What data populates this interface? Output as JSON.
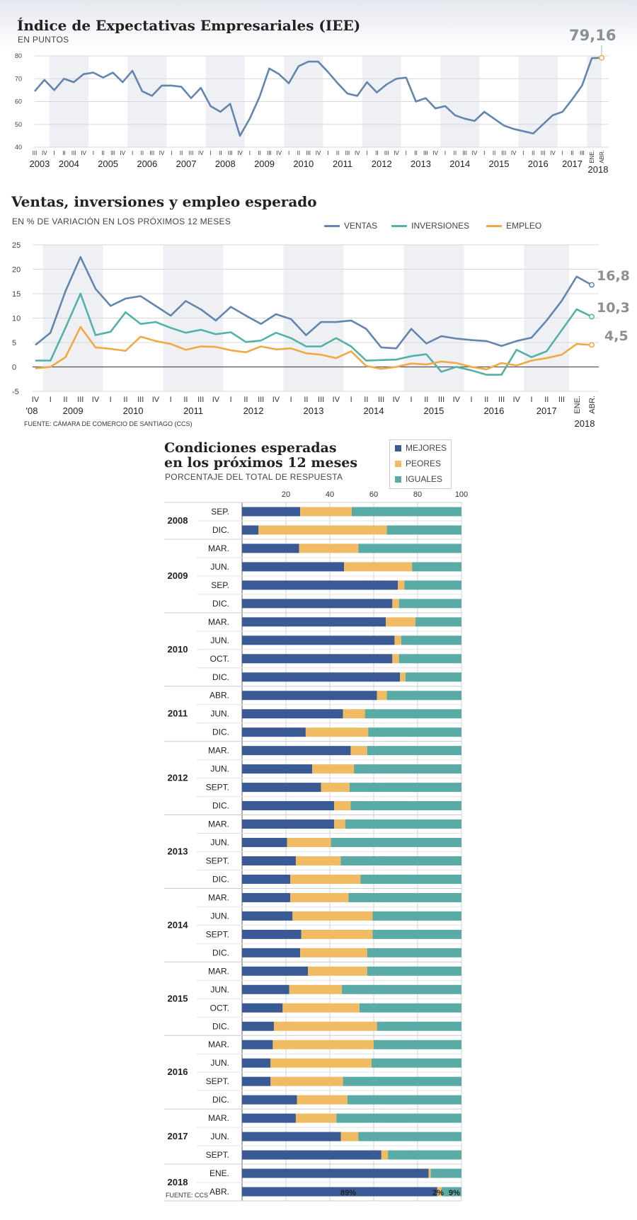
{
  "colors": {
    "mejores": "#3a5a96",
    "peores": "#f0bb63",
    "iguales": "#5aaaa5",
    "ventas": "#6485ad",
    "inversiones": "#53b2a8",
    "empleo": "#f1a945",
    "line1": "#6485ad",
    "band": "#eef0f3",
    "marker": "#f1a945"
  },
  "chart1": {
    "title": "Índice de Expectativas Empresariales (IEE)",
    "subtitle": "EN PUNTOS",
    "last_value_label": "79,16"
  },
  "chart2": {
    "title": "Ventas, inversiones y empleo esperado",
    "subtitle": "EN % DE VARIACIÓN EN LOS PRÓXIMOS 12 MESES",
    "source": "FUENTE: CÁMARA DE COMERCIO DE SANTIAGO (CCS)",
    "legend": [
      "VENTAS",
      "INVERSIONES",
      "EMPLEO"
    ],
    "end_labels": [
      "16,8",
      "10,3",
      "4,5"
    ]
  },
  "chart3": {
    "title_line1": "Condiciones esperadas",
    "title_line2": "en los próximos 12 meses",
    "subtitle": "PORCENTAJE DEL TOTAL DE RESPUESTA",
    "legend": [
      "MEJORES",
      "PEORES",
      "IGUALES"
    ],
    "source": "FUENTE: CCS",
    "final_labels": [
      "89%",
      "2%",
      "9%"
    ]
  },
  "chart_data": [
    {
      "type": "line",
      "title": "Índice de Expectativas Empresariales (IEE)",
      "subtitle": "EN PUNTOS",
      "ylim": [
        40,
        80
      ],
      "yticks": [
        40,
        50,
        60,
        70,
        80
      ],
      "grid": true,
      "x": [
        "2003 III",
        "2003 IV",
        "2004 I",
        "2004 II",
        "2004 III",
        "2004 IV",
        "2005 I",
        "2005 II",
        "2005 III",
        "2005 IV",
        "2006 I",
        "2006 II",
        "2006 III",
        "2006 IV",
        "2007 I",
        "2007 II",
        "2007 III",
        "2007 IV",
        "2008 I",
        "2008 II",
        "2008 III",
        "2008 IV",
        "2009 I",
        "2009 II",
        "2009 III",
        "2009 IV",
        "2010 I",
        "2010 II",
        "2010 III",
        "2010 IV",
        "2011 I",
        "2011 II",
        "2011 III",
        "2011 IV",
        "2012 I",
        "2012 II",
        "2012 III",
        "2012 IV",
        "2013 I",
        "2013 II",
        "2013 III",
        "2013 IV",
        "2014 I",
        "2014 II",
        "2014 III",
        "2014 IV",
        "2015 I",
        "2015 II",
        "2015 III",
        "2015 IV",
        "2016 I",
        "2016 II",
        "2016 III",
        "2016 IV",
        "2017 I",
        "2017 II",
        "2017 III",
        "2018 ENE.",
        "2018 ABR."
      ],
      "year_labels": [
        "2003",
        "2004",
        "2005",
        "2006",
        "2007",
        "2008",
        "2009",
        "2010",
        "2011",
        "2012",
        "2013",
        "2014",
        "2015",
        "2016",
        "2017",
        "2018"
      ],
      "quarter_labels": [
        "III",
        "IV",
        "I",
        "II",
        "III",
        "IV",
        "I",
        "II",
        "III",
        "IV",
        "I",
        "II",
        "III",
        "IV",
        "I",
        "II",
        "III",
        "IV",
        "I",
        "II",
        "III",
        "IV",
        "I",
        "II",
        "III",
        "IV",
        "I",
        "II",
        "III",
        "IV",
        "I",
        "II",
        "III",
        "IV",
        "I",
        "II",
        "III",
        "IV",
        "I",
        "II",
        "III",
        "IV",
        "I",
        "II",
        "III",
        "IV",
        "I",
        "II",
        "III",
        "IV",
        "I",
        "II",
        "III",
        "IV",
        "I",
        "II",
        "III",
        "ENE.",
        "ABR."
      ],
      "series": [
        {
          "values": [
            64.5,
            69.5,
            65,
            70,
            68.5,
            72,
            72.7,
            70.5,
            72.7,
            68.5,
            73.5,
            64.5,
            62.5,
            67,
            67,
            66.5,
            61.5,
            66,
            58,
            55.5,
            59,
            45,
            52.5,
            62,
            74.5,
            72,
            68,
            75.5,
            77.5,
            77.5,
            73,
            68,
            63.5,
            62.5,
            68.5,
            64,
            67.5,
            70,
            70.5,
            60,
            61.5,
            57,
            58,
            54,
            52.5,
            51.5,
            55.5,
            52.5,
            49.5,
            48,
            47,
            46,
            50,
            54,
            55.5,
            61,
            67,
            79,
            79.16
          ]
        }
      ],
      "last_label": "79,16"
    },
    {
      "type": "line",
      "title": "Ventas, inversiones y empleo esperado",
      "subtitle": "EN % DE VARIACIÓN EN LOS PRÓXIMOS 12 MESES",
      "ylim": [
        -5,
        25
      ],
      "yticks": [
        -5,
        0,
        5,
        10,
        15,
        20,
        25
      ],
      "grid": true,
      "legend_position": "top-right",
      "x": [
        "2008 IV",
        "2009 I",
        "2009 II",
        "2009 III",
        "2009 IV",
        "2010 I",
        "2010 II",
        "2010 III",
        "2010 IV",
        "2011 I",
        "2011 II",
        "2011 III",
        "2011 IV",
        "2012 I",
        "2012 II",
        "2012 III",
        "2012 IV",
        "2013 I",
        "2013 II",
        "2013 III",
        "2013 IV",
        "2014 I",
        "2014 II",
        "2014 III",
        "2014 IV",
        "2015 I",
        "2015 II",
        "2015 III",
        "2015 IV",
        "2016 I",
        "2016 II",
        "2016 III",
        "2016 IV",
        "2017 I",
        "2017 II",
        "2017 III",
        "2018 ENE.",
        "2018 ABR."
      ],
      "year_labels": [
        "'08",
        "2009",
        "2010",
        "2011",
        "2012",
        "2013",
        "2014",
        "2015",
        "2016",
        "2017",
        "2018"
      ],
      "quarter_labels": [
        "IV",
        "I",
        "II",
        "III",
        "IV",
        "I",
        "II",
        "III",
        "IV",
        "I",
        "II",
        "III",
        "IV",
        "I",
        "II",
        "III",
        "IV",
        "I",
        "II",
        "III",
        "IV",
        "I",
        "II",
        "III",
        "IV",
        "I",
        "II",
        "III",
        "IV",
        "I",
        "II",
        "III",
        "IV",
        "I",
        "II",
        "III",
        "ENE.",
        "ABR."
      ],
      "series": [
        {
          "name": "VENTAS",
          "values": [
            4.5,
            7,
            15.5,
            22.5,
            16,
            12.5,
            14,
            14.5,
            12.5,
            10.5,
            13.5,
            11.8,
            9.5,
            12.3,
            10.5,
            8.8,
            10.8,
            9.8,
            6.5,
            9.2,
            9.2,
            9.5,
            7.8,
            4,
            3.8,
            7.8,
            4.8,
            6.3,
            5.8,
            5.5,
            5.3,
            4.3,
            5.3,
            6,
            9.5,
            13.5,
            18.5,
            16.8
          ]
        },
        {
          "name": "INVERSIONES",
          "values": [
            1.3,
            1.3,
            8,
            15,
            6.5,
            7.2,
            11.2,
            8.8,
            9.2,
            8,
            7,
            7.6,
            6.7,
            7.1,
            5.1,
            5.4,
            7,
            5.9,
            4.2,
            4.2,
            5.9,
            4.2,
            1.3,
            1.4,
            1.5,
            2.2,
            2.6,
            -1,
            0,
            -0.7,
            -1.6,
            -1.6,
            3.5,
            2,
            3.2,
            7.5,
            11.8,
            10.3
          ]
        },
        {
          "name": "EMPLEO",
          "values": [
            -0.3,
            0,
            2,
            8.2,
            4,
            3.7,
            3.3,
            6.2,
            5.3,
            4.7,
            3.5,
            4.2,
            4.1,
            3.4,
            3,
            4.2,
            3.6,
            3.8,
            2.8,
            2.5,
            1.8,
            3.2,
            0.2,
            -0.4,
            0,
            0.7,
            0.5,
            1.1,
            0.8,
            0,
            -0.5,
            0.8,
            0.3,
            1.3,
            1.8,
            2.5,
            4.7,
            4.5
          ]
        }
      ],
      "end_labels": [
        "16,8",
        "10,3",
        "4,5"
      ]
    },
    {
      "type": "bar",
      "orientation": "horizontal",
      "stacked": true,
      "title": "Condiciones esperadas en los próximos 12 meses",
      "subtitle": "PORCENTAJE DEL TOTAL DE RESPUESTA",
      "xlim": [
        0,
        100
      ],
      "xticks": [
        20,
        40,
        60,
        80,
        100
      ],
      "legend_position": "top-right",
      "groups": [
        {
          "year": "2008",
          "rows": [
            {
              "label": "SEP.",
              "values": [
                26.5,
                23.5,
                50
              ]
            },
            {
              "label": "DIC.",
              "values": [
                7.5,
                58.5,
                34
              ]
            }
          ]
        },
        {
          "year": "2009",
          "rows": [
            {
              "label": "MAR.",
              "values": [
                26,
                27,
                47
              ]
            },
            {
              "label": "JUN.",
              "values": [
                46.5,
                31,
                22.5
              ]
            },
            {
              "label": "SEP.",
              "values": [
                71,
                3,
                26
              ]
            },
            {
              "label": "DIC.",
              "values": [
                68.5,
                3,
                28.5
              ]
            }
          ]
        },
        {
          "year": "2010",
          "rows": [
            {
              "label": "MAR.",
              "values": [
                65.5,
                13.5,
                21
              ]
            },
            {
              "label": "JUN.",
              "values": [
                69.5,
                3,
                27.5
              ]
            },
            {
              "label": "OCT.",
              "values": [
                68.5,
                3,
                28.5
              ]
            },
            {
              "label": "DIC.",
              "values": [
                72,
                2.5,
                25.5
              ]
            }
          ]
        },
        {
          "year": "2011",
          "rows": [
            {
              "label": "ABR.",
              "values": [
                61.5,
                4.5,
                34
              ]
            },
            {
              "label": "JUN.",
              "values": [
                46,
                10,
                44
              ]
            },
            {
              "label": "DIC.",
              "values": [
                29,
                28.5,
                42.5
              ]
            }
          ]
        },
        {
          "year": "2012",
          "rows": [
            {
              "label": "MAR.",
              "values": [
                49.5,
                7.5,
                43
              ]
            },
            {
              "label": "JUN.",
              "values": [
                32,
                19,
                49
              ]
            },
            {
              "label": "SEPT.",
              "values": [
                36,
                13,
                51
              ]
            },
            {
              "label": "DIC.",
              "values": [
                42,
                7.5,
                50.5
              ]
            }
          ]
        },
        {
          "year": "2013",
          "rows": [
            {
              "label": "MAR.",
              "values": [
                42,
                5,
                53
              ]
            },
            {
              "label": "JUN.",
              "values": [
                20.5,
                20,
                59.5
              ]
            },
            {
              "label": "SEPT.",
              "values": [
                24.5,
                20.5,
                55
              ]
            },
            {
              "label": "DIC.",
              "values": [
                22,
                32,
                46
              ]
            }
          ]
        },
        {
          "year": "2014",
          "rows": [
            {
              "label": "MAR.",
              "values": [
                22,
                26.5,
                51.5
              ]
            },
            {
              "label": "JUN.",
              "values": [
                23,
                36.5,
                40.5
              ]
            },
            {
              "label": "SEPT.",
              "values": [
                27,
                32.5,
                40.5
              ]
            },
            {
              "label": "DIC.",
              "values": [
                26.5,
                30.5,
                43
              ]
            }
          ]
        },
        {
          "year": "2015",
          "rows": [
            {
              "label": "MAR.",
              "values": [
                30,
                27,
                43
              ]
            },
            {
              "label": "JUN.",
              "values": [
                21.5,
                24,
                54.5
              ]
            },
            {
              "label": "OCT.",
              "values": [
                18.5,
                35,
                46.5
              ]
            },
            {
              "label": "DIC.",
              "values": [
                14.5,
                47,
                38.5
              ]
            }
          ]
        },
        {
          "year": "2016",
          "rows": [
            {
              "label": "MAR.",
              "values": [
                14,
                46,
                40
              ]
            },
            {
              "label": "JUN.",
              "values": [
                13,
                46,
                41
              ]
            },
            {
              "label": "SEPT.",
              "values": [
                13,
                33,
                54
              ]
            },
            {
              "label": "DIC.",
              "values": [
                25,
                23,
                52
              ]
            }
          ]
        },
        {
          "year": "2017",
          "rows": [
            {
              "label": "MAR.",
              "values": [
                24.5,
                18.5,
                57
              ]
            },
            {
              "label": "JUN.",
              "values": [
                45,
                8,
                47
              ]
            },
            {
              "label": "SEPT.",
              "values": [
                63.5,
                3,
                33.5
              ]
            }
          ]
        },
        {
          "year": "2018",
          "rows": [
            {
              "label": "ENE.",
              "values": [
                85,
                1,
                14
              ]
            },
            {
              "label": "ABR.",
              "values": [
                89,
                2,
                9
              ]
            }
          ]
        }
      ],
      "series_names": [
        "MEJORES",
        "PEORES",
        "IGUALES"
      ]
    }
  ]
}
